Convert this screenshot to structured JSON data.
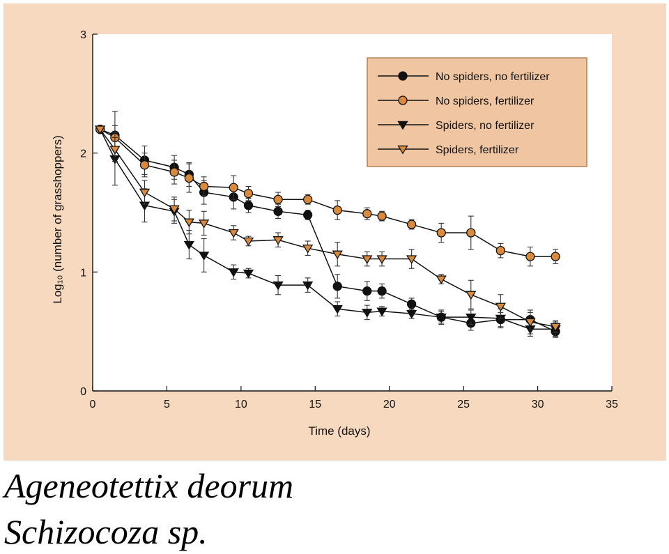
{
  "chart_data": {
    "type": "line",
    "title": "",
    "xlabel": "Time (days)",
    "ylabel": "Log₁₀ (number of grasshoppers)",
    "xlim": [
      0,
      35
    ],
    "ylim": [
      0,
      3
    ],
    "xticks": [
      0,
      5,
      10,
      15,
      20,
      25,
      30,
      35
    ],
    "yticks": [
      0,
      1,
      2,
      3
    ],
    "grid": false,
    "legend_position": "top-right",
    "series": [
      {
        "name": "No spiders, no fertilizer",
        "marker": "circle",
        "fill": "#111111",
        "x": [
          0.5,
          1.5,
          3.5,
          5.5,
          6.5,
          7.5,
          9.5,
          10.5,
          12.5,
          14.5,
          16.5,
          18.5,
          19.5,
          21.5,
          23.5,
          25.5,
          27.5,
          29.5,
          31.2
        ],
        "y": [
          2.2,
          2.15,
          1.94,
          1.88,
          1.82,
          1.67,
          1.63,
          1.56,
          1.51,
          1.48,
          0.88,
          0.84,
          0.84,
          0.73,
          0.62,
          0.57,
          0.6,
          0.6,
          0.5
        ],
        "err": [
          0,
          0.2,
          0.12,
          0.1,
          0.1,
          0.1,
          0.1,
          0.06,
          0.06,
          0.04,
          0.1,
          0.08,
          0.06,
          0.05,
          0.06,
          0.06,
          0.06,
          0.06,
          0.05
        ]
      },
      {
        "name": "No spiders, fertilizer",
        "marker": "circle",
        "fill": "#d98a3c",
        "x": [
          0.5,
          1.5,
          3.5,
          5.5,
          6.5,
          7.5,
          9.5,
          10.5,
          12.5,
          14.5,
          16.5,
          18.5,
          19.5,
          21.5,
          23.5,
          25.5,
          27.5,
          29.5,
          31.2
        ],
        "y": [
          2.2,
          2.13,
          1.9,
          1.84,
          1.79,
          1.72,
          1.71,
          1.66,
          1.61,
          1.61,
          1.52,
          1.49,
          1.47,
          1.4,
          1.33,
          1.33,
          1.18,
          1.13,
          1.13
        ],
        "err": [
          0,
          0.1,
          0.1,
          0.1,
          0.12,
          0.08,
          0.1,
          0.06,
          0.06,
          0.04,
          0.08,
          0.05,
          0.04,
          0.04,
          0.08,
          0.14,
          0.06,
          0.08,
          0.06
        ]
      },
      {
        "name": "Spiders, no fertilizer",
        "marker": "triangle-down",
        "fill": "#111111",
        "x": [
          0.5,
          1.5,
          3.5,
          5.5,
          6.5,
          7.5,
          9.5,
          10.5,
          12.5,
          14.5,
          16.5,
          18.5,
          19.5,
          21.5,
          23.5,
          25.5,
          27.5,
          29.5,
          31.2
        ],
        "y": [
          2.2,
          1.95,
          1.56,
          1.51,
          1.23,
          1.14,
          1.0,
          0.99,
          0.89,
          0.89,
          0.69,
          0.66,
          0.67,
          0.65,
          0.62,
          0.62,
          0.61,
          0.52,
          0.52
        ],
        "err": [
          0,
          0.22,
          0.14,
          0.1,
          0.12,
          0.14,
          0.06,
          0.04,
          0.08,
          0.06,
          0.06,
          0.06,
          0.04,
          0.04,
          0.05,
          0.06,
          0.08,
          0.06,
          0.06
        ]
      },
      {
        "name": "Spiders, fertilizer",
        "marker": "triangle-down",
        "fill": "#d98a3c",
        "x": [
          0.5,
          1.5,
          3.5,
          5.5,
          6.5,
          7.5,
          9.5,
          10.5,
          12.5,
          14.5,
          16.5,
          18.5,
          19.5,
          21.5,
          23.5,
          25.5,
          27.5,
          29.5,
          31.2
        ],
        "y": [
          2.2,
          2.03,
          1.67,
          1.53,
          1.42,
          1.41,
          1.33,
          1.26,
          1.27,
          1.2,
          1.15,
          1.11,
          1.11,
          1.11,
          0.94,
          0.81,
          0.71,
          0.58,
          0.54
        ],
        "err": [
          0,
          0.1,
          0.1,
          0.1,
          0.1,
          0.1,
          0.06,
          0.04,
          0.06,
          0.06,
          0.1,
          0.06,
          0.06,
          0.08,
          0.04,
          0.12,
          0.1,
          0.1,
          0.05
        ]
      }
    ]
  },
  "caption": {
    "line1": "Ageneotettix deorum",
    "line2": "Schizocoza sp."
  },
  "colors": {
    "panel_background": "#f6d9bf",
    "plot_background": "#ffffff",
    "legend_background": "#efc6a1",
    "orange_marker": "#d98a3c",
    "black_marker": "#111111"
  }
}
